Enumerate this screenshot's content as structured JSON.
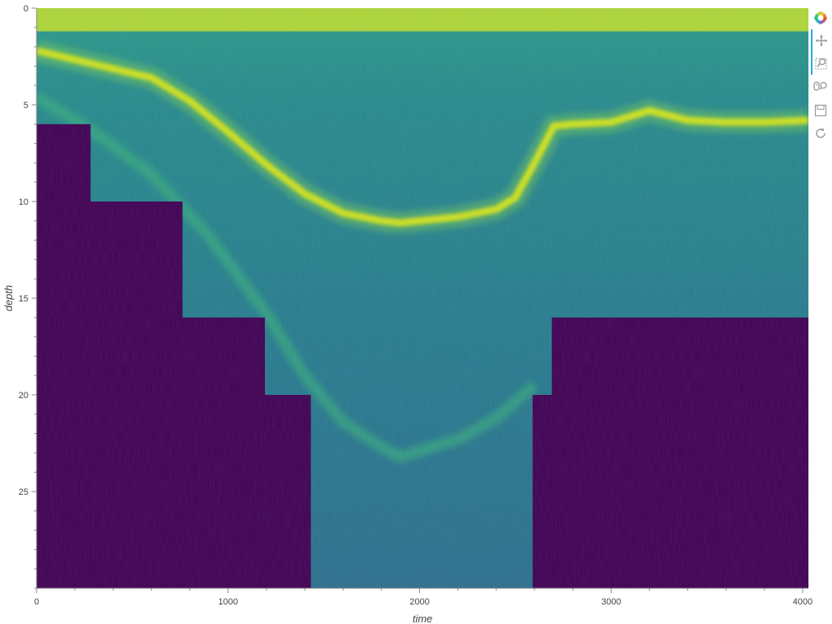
{
  "chart_data": {
    "type": "heatmap",
    "title": "",
    "xlabel": "time",
    "ylabel": "depth",
    "xlim": [
      0,
      4030
    ],
    "ylim": [
      30,
      0
    ],
    "x_ticks": [
      0,
      1000,
      2000,
      3000,
      4000
    ],
    "y_ticks": [
      0,
      5,
      10,
      15,
      20,
      25
    ],
    "colormap": "viridis",
    "colors": {
      "nodata": "#440154",
      "background_mid": "#2c7f8e",
      "band_bright": "#d5e21a",
      "surface": "#c8df2a"
    },
    "nodata_mask": {
      "description": "bottom region below seafloor, stepwise",
      "steps": [
        {
          "x_start": 0,
          "x_end": 280,
          "depth_start": 6
        },
        {
          "x_start": 280,
          "x_end": 760,
          "depth_start": 10
        },
        {
          "x_start": 760,
          "x_end": 1190,
          "depth_start": 16
        },
        {
          "x_start": 1190,
          "x_end": 1430,
          "depth_start": 20
        },
        {
          "x_start": 1430,
          "x_end": 2590,
          "depth_start": 30
        },
        {
          "x_start": 2590,
          "x_end": 2690,
          "depth_start": 20
        },
        {
          "x_start": 2690,
          "x_end": 4030,
          "depth_start": 16
        }
      ]
    },
    "bright_layer": {
      "x": [
        0,
        300,
        600,
        800,
        1000,
        1200,
        1400,
        1600,
        1800,
        1900,
        2000,
        2200,
        2400,
        2500,
        2600,
        2700,
        2800,
        3000,
        3200,
        3400,
        3600,
        3800,
        4030
      ],
      "depth": [
        2.2,
        2.9,
        3.6,
        4.8,
        6.4,
        8.1,
        9.6,
        10.6,
        11.0,
        11.1,
        11.0,
        10.8,
        10.4,
        9.8,
        8.0,
        6.1,
        6.0,
        5.9,
        5.3,
        5.8,
        5.9,
        5.9,
        5.8
      ]
    },
    "deep_layer": {
      "x": [
        0,
        300,
        600,
        900,
        1200,
        1400,
        1600,
        1800,
        1900,
        2000,
        2200,
        2400,
        2600
      ],
      "depth": [
        4.6,
        6.4,
        8.6,
        11.8,
        15.8,
        19.0,
        21.4,
        22.7,
        23.2,
        22.9,
        22.3,
        21.2,
        19.5
      ]
    },
    "surface_layer_depth": 1.2
  },
  "toolbar": {
    "tools": [
      {
        "name": "bokeh-logo-icon"
      },
      {
        "name": "pan-icon"
      },
      {
        "name": "box-zoom-icon"
      },
      {
        "name": "wheel-zoom-icon"
      },
      {
        "name": "save-icon"
      },
      {
        "name": "reset-icon"
      }
    ]
  }
}
